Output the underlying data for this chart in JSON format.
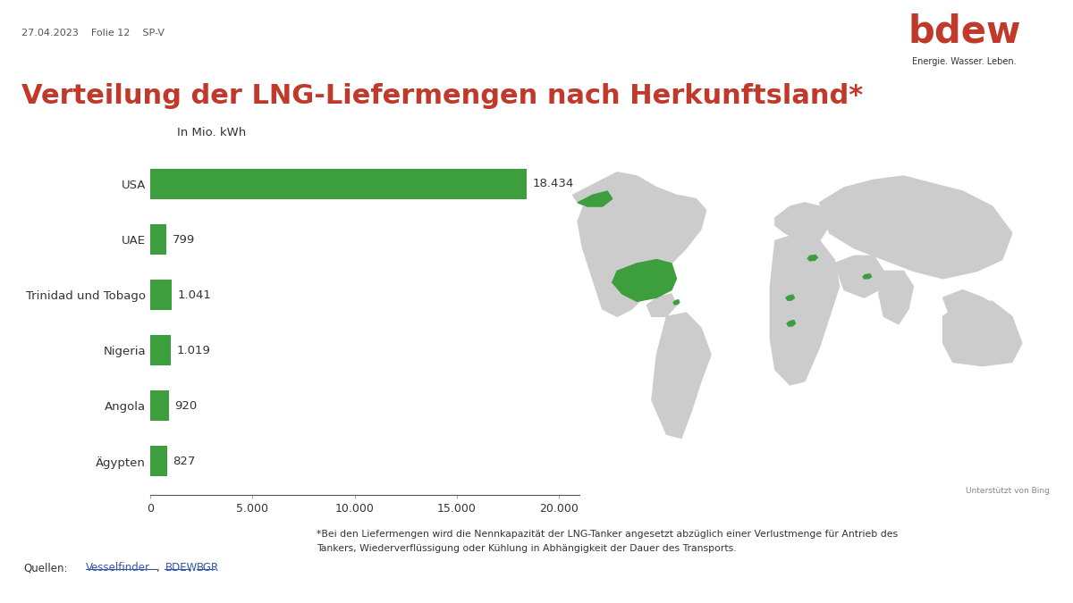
{
  "title": "Verteilung der LNG-Liefermengen nach Herkunftsland*",
  "title_color": "#c0392b",
  "background_color": "#ffffff",
  "header_date": "27.04.2023",
  "header_folie": "Folie 12",
  "header_sp": "SP-V",
  "axis_label": "In Mio. kWh",
  "categories": [
    "USA",
    "UAE",
    "Trinidad und Tobago",
    "Nigeria",
    "Angola",
    "Ägypten"
  ],
  "values": [
    18434,
    799,
    1041,
    1019,
    920,
    827
  ],
  "value_labels": [
    "18.434",
    "799",
    "1.041",
    "1.019",
    "920",
    "827"
  ],
  "bar_color": "#3d9e3d",
  "bar_height": 0.55,
  "xlim": [
    0,
    21000
  ],
  "xticks": [
    0,
    5000,
    10000,
    15000,
    20000
  ],
  "xtick_labels": [
    "0",
    "5.000",
    "10.000",
    "15.000",
    "20.000"
  ],
  "footnote_line1": "*Bei den Liefermengen wird die Nennkapazität der LNG-Tanker angesetzt abzüglich einer Verlustmenge für Antrieb des",
  "footnote_line2": "Tankers, Wiederverflüssigung oder Kühlung in Abhängigkeit der Dauer des Transports.",
  "sources_label": "Quellen:",
  "sources": [
    "Vesselfinder",
    "BDEW",
    "BGR"
  ],
  "bdew_logo_color": "#c0392b",
  "bdew_logo_text": "bdew",
  "logo_sub": "Energie. Wasser. Leben.",
  "top_line_color": "#c0392b",
  "bing_note": "Unterstützt von Bing",
  "link_color": "#3355aa",
  "header_color": "#555555",
  "text_color": "#333333",
  "map_bg_color": "#e8e8e8",
  "continent_color": "#cccccc",
  "footer_line_color": "#cccccc"
}
